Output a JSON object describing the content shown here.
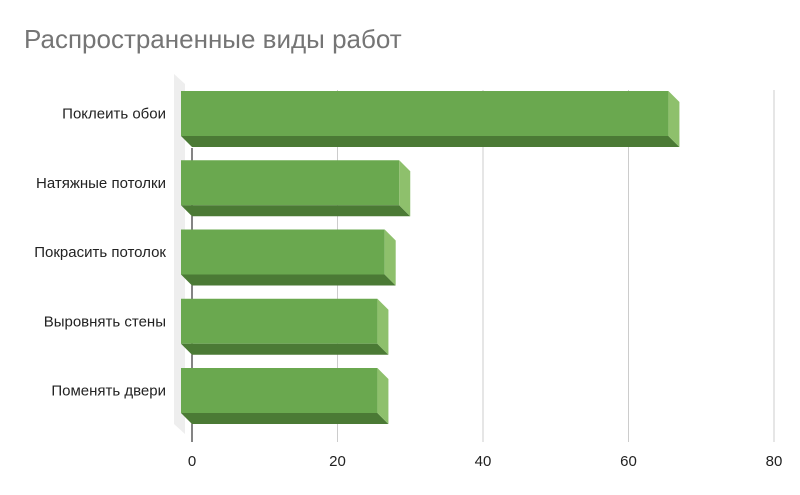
{
  "chart_data": {
    "type": "bar",
    "orientation": "horizontal",
    "style": "3d",
    "title": "Распространенные виды работ",
    "categories": [
      "Поклеить обои",
      "Натяжные потолки",
      "Покрасить потолок",
      "Выровнять стены",
      "Поменять двери"
    ],
    "values": [
      67,
      30,
      28,
      27,
      27
    ],
    "xlim": [
      0,
      80
    ],
    "xticks": [
      0,
      20,
      40,
      60,
      80
    ],
    "grid": true,
    "legend": "none",
    "colors": {
      "bar_front": "#6aa84f",
      "bar_bottom": "#4b7a35",
      "bar_side": "#8ec06c",
      "axis": "#333333",
      "grid": "#cccccc",
      "wall": "#eeeeee"
    }
  }
}
